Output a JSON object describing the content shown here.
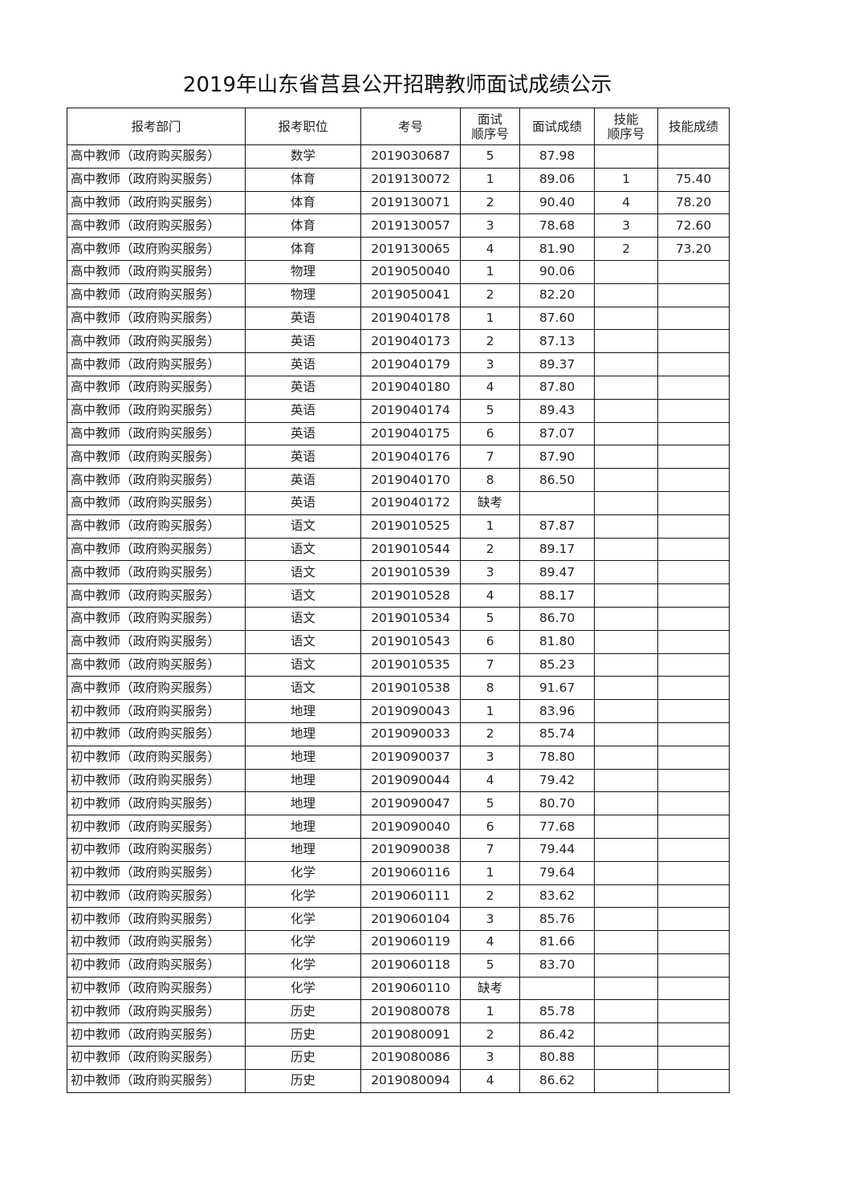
{
  "title": "2019年山东省莒县公开招聘教师面试成绩公示",
  "columns": [
    "报考部门",
    "报考职位",
    "考号",
    "面试顺序号",
    "面试成绩",
    "技能顺序号",
    "技能成绩"
  ],
  "column_display": [
    "报考部门",
    "报考职位",
    "考号",
    "面试\n顺序号",
    "面试成绩",
    "技能\n顺序号",
    "技能成绩"
  ],
  "rows": [
    [
      "高中教师（政府购买服务）",
      "数学",
      "2019030687",
      "5",
      "87.98",
      "",
      ""
    ],
    [
      "高中教师（政府购买服务）",
      "体育",
      "2019130072",
      "1",
      "89.06",
      "1",
      "75.40"
    ],
    [
      "高中教师（政府购买服务）",
      "体育",
      "2019130071",
      "2",
      "90.40",
      "4",
      "78.20"
    ],
    [
      "高中教师（政府购买服务）",
      "体育",
      "2019130057",
      "3",
      "78.68",
      "3",
      "72.60"
    ],
    [
      "高中教师（政府购买服务）",
      "体育",
      "2019130065",
      "4",
      "81.90",
      "2",
      "73.20"
    ],
    [
      "高中教师（政府购买服务）",
      "物理",
      "2019050040",
      "1",
      "90.06",
      "",
      ""
    ],
    [
      "高中教师（政府购买服务）",
      "物理",
      "2019050041",
      "2",
      "82.20",
      "",
      ""
    ],
    [
      "高中教师（政府购买服务）",
      "英语",
      "2019040178",
      "1",
      "87.60",
      "",
      ""
    ],
    [
      "高中教师（政府购买服务）",
      "英语",
      "2019040173",
      "2",
      "87.13",
      "",
      ""
    ],
    [
      "高中教师（政府购买服务）",
      "英语",
      "2019040179",
      "3",
      "89.37",
      "",
      ""
    ],
    [
      "高中教师（政府购买服务）",
      "英语",
      "2019040180",
      "4",
      "87.80",
      "",
      ""
    ],
    [
      "高中教师（政府购买服务）",
      "英语",
      "2019040174",
      "5",
      "89.43",
      "",
      ""
    ],
    [
      "高中教师（政府购买服务）",
      "英语",
      "2019040175",
      "6",
      "87.07",
      "",
      ""
    ],
    [
      "高中教师（政府购买服务）",
      "英语",
      "2019040176",
      "7",
      "87.90",
      "",
      ""
    ],
    [
      "高中教师（政府购买服务）",
      "英语",
      "2019040170",
      "8",
      "86.50",
      "",
      ""
    ],
    [
      "高中教师（政府购买服务）",
      "英语",
      "2019040172",
      "缺考",
      "",
      "",
      ""
    ],
    [
      "高中教师（政府购买服务）",
      "语文",
      "2019010525",
      "1",
      "87.87",
      "",
      ""
    ],
    [
      "高中教师（政府购买服务）",
      "语文",
      "2019010544",
      "2",
      "89.17",
      "",
      ""
    ],
    [
      "高中教师（政府购买服务）",
      "语文",
      "2019010539",
      "3",
      "89.47",
      "",
      ""
    ],
    [
      "高中教师（政府购买服务）",
      "语文",
      "2019010528",
      "4",
      "88.17",
      "",
      ""
    ],
    [
      "高中教师（政府购买服务）",
      "语文",
      "2019010534",
      "5",
      "86.70",
      "",
      ""
    ],
    [
      "高中教师（政府购买服务）",
      "语文",
      "2019010543",
      "6",
      "81.80",
      "",
      ""
    ],
    [
      "高中教师（政府购买服务）",
      "语文",
      "2019010535",
      "7",
      "85.23",
      "",
      ""
    ],
    [
      "高中教师（政府购买服务）",
      "语文",
      "2019010538",
      "8",
      "91.67",
      "",
      ""
    ],
    [
      "初中教师（政府购买服务）",
      "地理",
      "2019090043",
      "1",
      "83.96",
      "",
      ""
    ],
    [
      "初中教师（政府购买服务）",
      "地理",
      "2019090033",
      "2",
      "85.74",
      "",
      ""
    ],
    [
      "初中教师（政府购买服务）",
      "地理",
      "2019090037",
      "3",
      "78.80",
      "",
      ""
    ],
    [
      "初中教师（政府购买服务）",
      "地理",
      "2019090044",
      "4",
      "79.42",
      "",
      ""
    ],
    [
      "初中教师（政府购买服务）",
      "地理",
      "2019090047",
      "5",
      "80.70",
      "",
      ""
    ],
    [
      "初中教师（政府购买服务）",
      "地理",
      "2019090040",
      "6",
      "77.68",
      "",
      ""
    ],
    [
      "初中教师（政府购买服务）",
      "地理",
      "2019090038",
      "7",
      "79.44",
      "",
      ""
    ],
    [
      "初中教师（政府购买服务）",
      "化学",
      "2019060116",
      "1",
      "79.64",
      "",
      ""
    ],
    [
      "初中教师（政府购买服务）",
      "化学",
      "2019060111",
      "2",
      "83.62",
      "",
      ""
    ],
    [
      "初中教师（政府购买服务）",
      "化学",
      "2019060104",
      "3",
      "85.76",
      "",
      ""
    ],
    [
      "初中教师（政府购买服务）",
      "化学",
      "2019060119",
      "4",
      "81.66",
      "",
      ""
    ],
    [
      "初中教师（政府购买服务）",
      "化学",
      "2019060118",
      "5",
      "83.70",
      "",
      ""
    ],
    [
      "初中教师（政府购买服务）",
      "化学",
      "2019060110",
      "缺考",
      "",
      "",
      ""
    ],
    [
      "初中教师（政府购买服务）",
      "历史",
      "2019080078",
      "1",
      "85.78",
      "",
      ""
    ],
    [
      "初中教师（政府购买服务）",
      "历史",
      "2019080091",
      "2",
      "86.42",
      "",
      ""
    ],
    [
      "初中教师（政府购买服务）",
      "历史",
      "2019080086",
      "3",
      "80.88",
      "",
      ""
    ],
    [
      "初中教师（政府购买服务）",
      "历史",
      "2019080094",
      "4",
      "86.62",
      "",
      ""
    ]
  ]
}
